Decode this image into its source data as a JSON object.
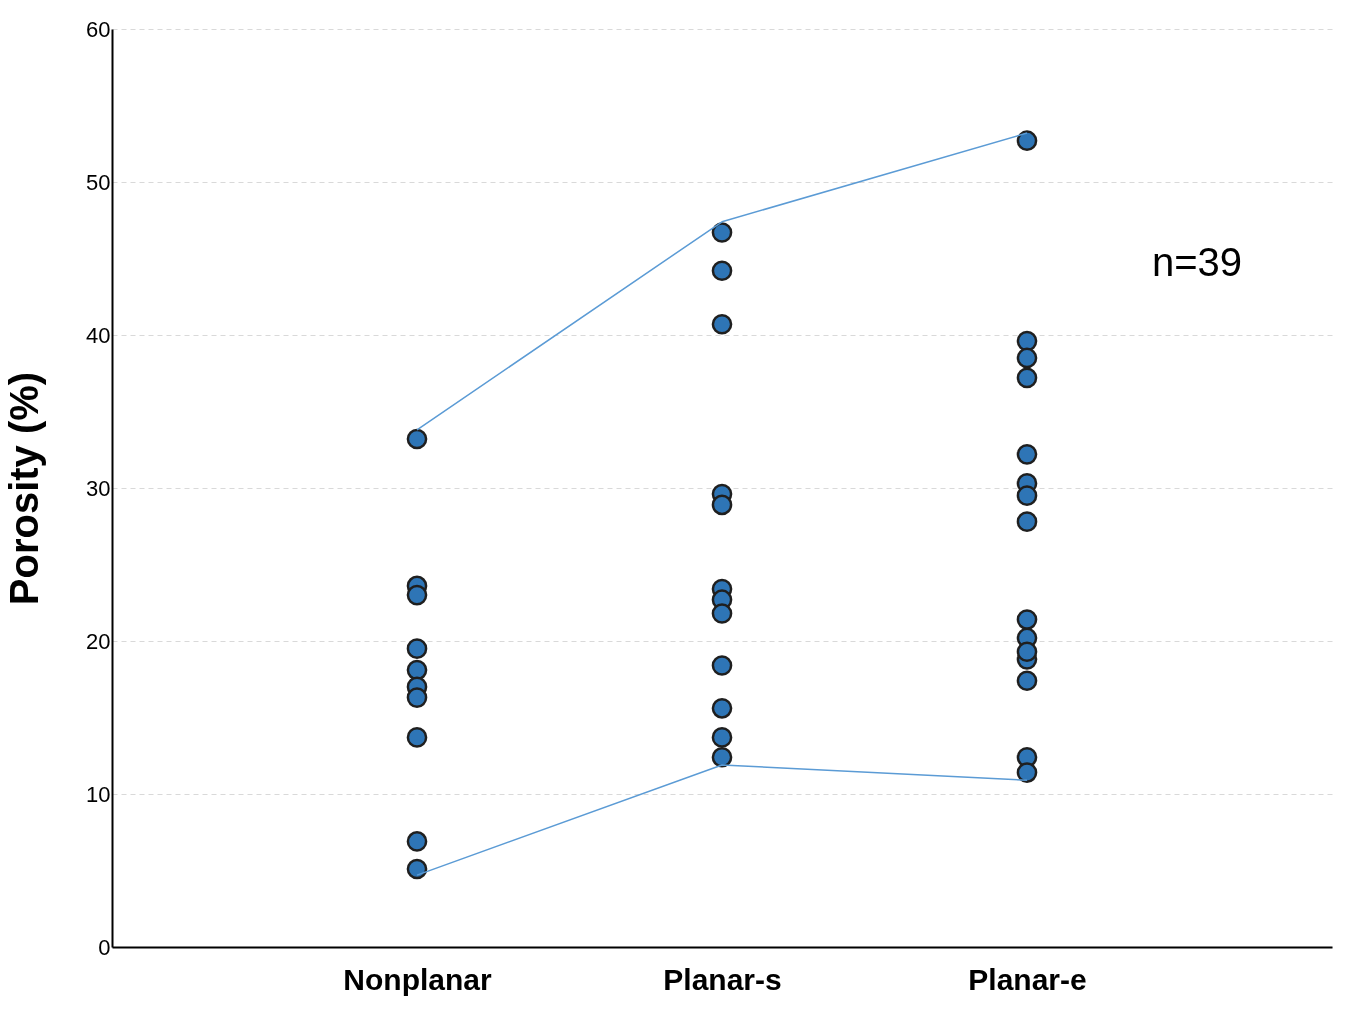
{
  "chart_data": {
    "type": "scatter",
    "ylabel": "Porosity (%)",
    "categories": [
      "Nonplanar",
      "Planar-s",
      "Planar-e"
    ],
    "ylim": [
      0,
      60
    ],
    "yticks": [
      0,
      10,
      20,
      30,
      40,
      50,
      60
    ],
    "grid": "y",
    "annotations": [
      "n=39"
    ],
    "series": [
      {
        "type": "scatter",
        "color": "#2e75b6",
        "marker": "circle",
        "x": [
          "Nonplanar",
          "Nonplanar",
          "Nonplanar",
          "Nonplanar",
          "Nonplanar",
          "Nonplanar",
          "Nonplanar",
          "Nonplanar",
          "Nonplanar",
          "Nonplanar",
          "Planar-s",
          "Planar-s",
          "Planar-s",
          "Planar-s",
          "Planar-s",
          "Planar-s",
          "Planar-s",
          "Planar-s",
          "Planar-s",
          "Planar-s",
          "Planar-s",
          "Planar-s",
          "Planar-e",
          "Planar-e",
          "Planar-e",
          "Planar-e",
          "Planar-e",
          "Planar-e",
          "Planar-e",
          "Planar-e",
          "Planar-e",
          "Planar-e",
          "Planar-e",
          "Planar-e",
          "Planar-e",
          "Planar-e",
          "Planar-e"
        ],
        "values": [
          33.2,
          23.6,
          23.0,
          19.5,
          18.1,
          17.0,
          16.3,
          13.7,
          6.9,
          5.1,
          46.7,
          44.2,
          40.7,
          29.6,
          28.9,
          23.4,
          22.7,
          21.8,
          18.4,
          15.6,
          13.7,
          12.4,
          52.7,
          39.6,
          38.5,
          37.2,
          32.2,
          30.3,
          29.5,
          27.8,
          21.4,
          20.2,
          18.8,
          19.3,
          17.4,
          12.4,
          11.4
        ]
      },
      {
        "type": "line",
        "color": "#5b9bd5",
        "marker": "none",
        "x": [
          "Nonplanar",
          "Planar-s",
          "Planar-e"
        ],
        "values": [
          33.8,
          47.4,
          53.2
        ]
      },
      {
        "type": "line",
        "color": "#5b9bd5",
        "marker": "none",
        "x": [
          "Nonplanar",
          "Planar-s",
          "Planar-e"
        ],
        "values": [
          4.7,
          11.9,
          10.9
        ]
      }
    ]
  }
}
